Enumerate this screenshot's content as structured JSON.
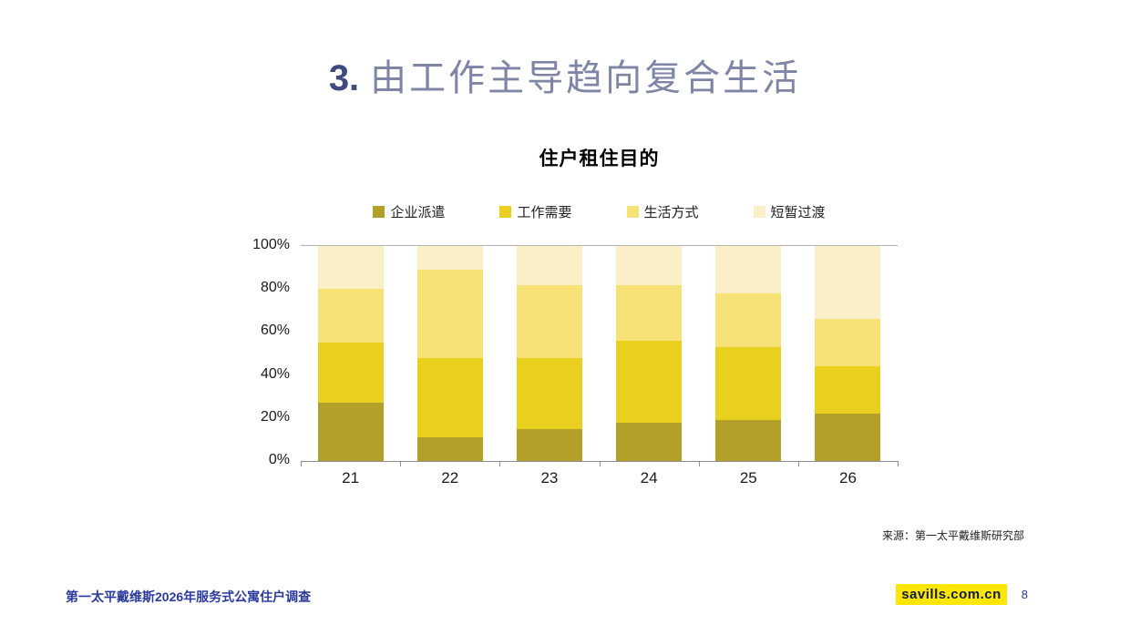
{
  "slide": {
    "title_number": "3.",
    "title_text": "由工作主导趋向复合生活",
    "source": "来源：第一太平戴维斯研究部",
    "footer_left": "第一太平戴维斯2026年服务式公寓住户调查",
    "footer_site": "savills.com.cn",
    "page_number": "8"
  },
  "colors": {
    "title_number": "#3f4a7e",
    "title_text": "#7e85a6",
    "footer_blue": "#2b3a9e",
    "highlight_yellow": "#ffe600",
    "site_text": "#0c1c4d",
    "axis_line": "#8c8c8c",
    "grid_top": "#b3b3b3"
  },
  "chart_data": {
    "type": "bar",
    "stacked": true,
    "percent_stacked": true,
    "title": "住户租住目的",
    "categories": [
      "21",
      "22",
      "23",
      "24",
      "25",
      "26"
    ],
    "series": [
      {
        "name": "企业派遣",
        "color": "#b3a02b",
        "values": [
          27,
          11,
          15,
          18,
          19,
          22
        ]
      },
      {
        "name": "工作需要",
        "color": "#e9d01f",
        "values": [
          28,
          37,
          33,
          38,
          34,
          22
        ]
      },
      {
        "name": "生活方式",
        "color": "#f7e277",
        "values": [
          25,
          41,
          34,
          26,
          25,
          22
        ]
      },
      {
        "name": "短暂过渡",
        "color": "#fbefc8",
        "values": [
          20,
          11,
          18,
          18,
          22,
          34
        ]
      }
    ],
    "ylim": [
      0,
      100
    ],
    "yticks": [
      "0%",
      "20%",
      "40%",
      "60%",
      "80%",
      "100%"
    ],
    "legend_position": "top",
    "grid": false
  }
}
